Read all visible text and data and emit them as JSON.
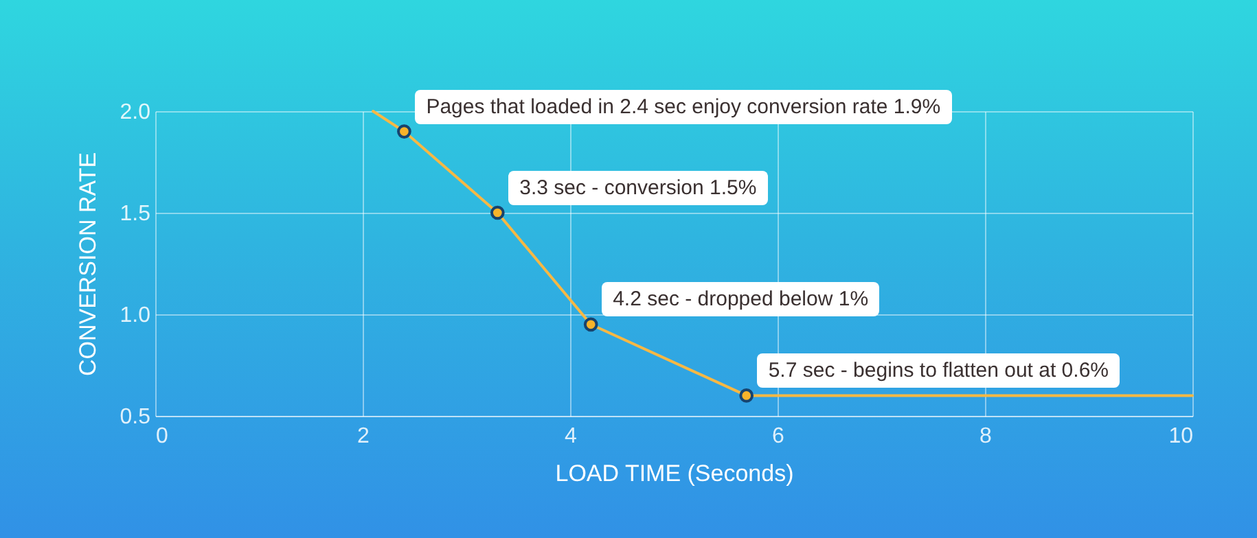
{
  "chart_data": {
    "type": "line",
    "xlabel": "LOAD TIME (Seconds)",
    "ylabel": "CONVERSION RATE",
    "xlim": [
      0,
      10
    ],
    "ylim": [
      0.5,
      2.0
    ],
    "xticks": [
      0,
      2,
      4,
      6,
      8,
      10
    ],
    "yticks": [
      {
        "value": 0.5,
        "label": "0.5"
      },
      {
        "value": 1,
        "label": "1.0"
      },
      {
        "value": 1.5,
        "label": "1.5"
      },
      {
        "value": 2,
        "label": "2.0"
      }
    ],
    "grid": true,
    "series": [
      {
        "color": "#f7b844",
        "marker": "none",
        "x": [
          2.1,
          2.4,
          3.3,
          4.2,
          5.7,
          10
        ],
        "values": [
          2.0,
          1.9,
          1.5,
          0.95,
          0.6,
          0.6
        ]
      },
      {
        "type": "scatter",
        "color": "#f7b32b",
        "marker": "circle",
        "x": [
          2.4,
          3.3,
          4.2,
          5.7
        ],
        "values": [
          1.9,
          1.5,
          0.95,
          0.6
        ]
      }
    ],
    "annotations": [
      {
        "text": "Pages that loaded in 2.4 sec enjoy conversion rate 1.9%",
        "x": 2.4,
        "y": 1.9
      },
      {
        "text": "3.3 sec - conversion 1.5%",
        "x": 3.3,
        "y": 1.5
      },
      {
        "text": "4.2 sec - dropped below 1%",
        "x": 4.2,
        "y": 0.95
      },
      {
        "text": "5.7 sec - begins to flatten out at 0.6%",
        "x": 5.7,
        "y": 0.6
      }
    ]
  }
}
